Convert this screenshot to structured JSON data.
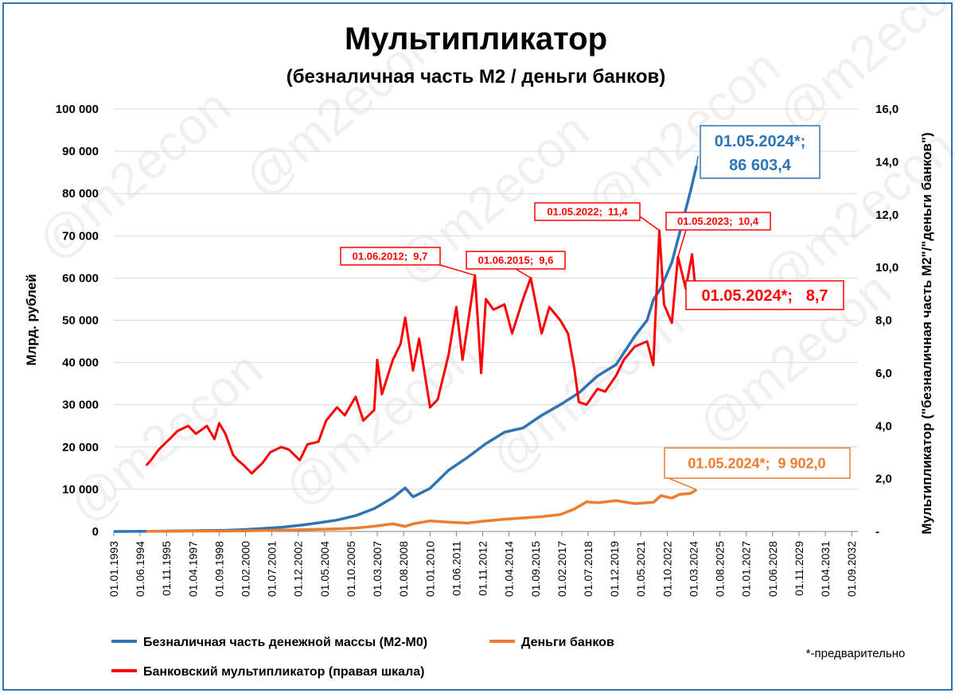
{
  "chart_data": {
    "type": "line",
    "title": "Мультипликатор",
    "subtitle": "(безналичная часть М2 / деньги банков)",
    "ylabel_left": "Млрд. рублей",
    "ylabel_right": "Мультипликатор (\"безналичная часть М2\"/\"деньги банков\")",
    "ylim_left": [
      0,
      100000
    ],
    "ylim_right": [
      0,
      16
    ],
    "xlim": [
      "1993-01-01",
      "2033-01-01"
    ],
    "grid": true,
    "legend_position": "bottom",
    "left_tick_labels": [
      "0",
      "10 000",
      "20 000",
      "30 000",
      "40 000",
      "50 000",
      "60 000",
      "70 000",
      "80 000",
      "90 000",
      "100 000"
    ],
    "right_tick_labels": [
      "-",
      "2,0",
      "4,0",
      "6,0",
      "8,0",
      "10,0",
      "12,0",
      "14,0",
      "16,0"
    ],
    "x_tick_labels": [
      "01.01.1993",
      "01.06.1994",
      "01.11.1995",
      "01.04.1997",
      "01.09.1998",
      "01.02.2000",
      "01.07.2001",
      "01.12.2002",
      "01.05.2004",
      "01.10.2005",
      "01.03.2007",
      "01.08.2008",
      "01.01.2010",
      "01.06.2011",
      "01.11.2012",
      "01.04.2014",
      "01.09.2015",
      "01.02.2017",
      "01.07.2018",
      "01.12.2019",
      "01.05.2021",
      "01.10.2022",
      "01.03.2024",
      "01.08.2025",
      "01.01.2027",
      "01.06.2028",
      "01.11.2029",
      "01.04.2031",
      "01.09.2032"
    ],
    "series": [
      {
        "name": "Безналичная часть денежной массы (М2-М0)",
        "axis": "left",
        "color": "#2e75b6",
        "points": [
          [
            "1993-01-01",
            5
          ],
          [
            "1995-01-01",
            60
          ],
          [
            "1997-01-01",
            170
          ],
          [
            "1999-01-01",
            280
          ],
          [
            "2000-01-01",
            450
          ],
          [
            "2001-01-01",
            700
          ],
          [
            "2002-01-01",
            1000
          ],
          [
            "2003-01-01",
            1450
          ],
          [
            "2004-01-01",
            2050
          ],
          [
            "2005-01-01",
            2700
          ],
          [
            "2006-01-01",
            3750
          ],
          [
            "2007-01-01",
            5400
          ],
          [
            "2008-01-01",
            8000
          ],
          [
            "2008-09-01",
            10300
          ],
          [
            "2009-02-01",
            8200
          ],
          [
            "2010-01-01",
            10200
          ],
          [
            "2011-01-01",
            14500
          ],
          [
            "2012-01-01",
            17500
          ],
          [
            "2013-01-01",
            20800
          ],
          [
            "2014-01-01",
            23500
          ],
          [
            "2015-01-01",
            24500
          ],
          [
            "2016-01-01",
            27500
          ],
          [
            "2017-01-01",
            30000
          ],
          [
            "2018-01-01",
            32800
          ],
          [
            "2019-01-01",
            36800
          ],
          [
            "2020-01-01",
            39500
          ],
          [
            "2021-01-01",
            46200
          ],
          [
            "2021-09-01",
            50000
          ],
          [
            "2022-01-01",
            54800
          ],
          [
            "2022-06-01",
            57600
          ],
          [
            "2023-01-01",
            63700
          ],
          [
            "2023-06-01",
            70600
          ],
          [
            "2024-01-01",
            80500
          ],
          [
            "2024-05-01",
            86603.4
          ]
        ]
      },
      {
        "name": "Деньги банков",
        "axis": "left",
        "color": "#ed7d31",
        "points": [
          [
            "1994-10-01",
            30
          ],
          [
            "1996-01-01",
            55
          ],
          [
            "1997-01-01",
            85
          ],
          [
            "1998-09-01",
            90
          ],
          [
            "2000-01-01",
            150
          ],
          [
            "2002-01-01",
            300
          ],
          [
            "2004-01-01",
            500
          ],
          [
            "2005-01-01",
            600
          ],
          [
            "2006-01-01",
            800
          ],
          [
            "2007-01-01",
            1250
          ],
          [
            "2008-01-01",
            1800
          ],
          [
            "2008-09-01",
            1200
          ],
          [
            "2009-02-01",
            1800
          ],
          [
            "2010-01-01",
            2500
          ],
          [
            "2011-01-01",
            2200
          ],
          [
            "2012-01-01",
            2000
          ],
          [
            "2013-01-01",
            2500
          ],
          [
            "2014-01-01",
            2900
          ],
          [
            "2015-01-01",
            3200
          ],
          [
            "2016-01-01",
            3500
          ],
          [
            "2017-01-01",
            4000
          ],
          [
            "2017-10-01",
            5300
          ],
          [
            "2018-06-01",
            7000
          ],
          [
            "2019-01-01",
            6800
          ],
          [
            "2020-01-01",
            7300
          ],
          [
            "2021-01-01",
            6600
          ],
          [
            "2022-01-01",
            6900
          ],
          [
            "2022-06-01",
            8500
          ],
          [
            "2023-01-01",
            7900
          ],
          [
            "2023-06-01",
            8800
          ],
          [
            "2024-01-01",
            9000
          ],
          [
            "2024-05-01",
            9902.0
          ]
        ]
      },
      {
        "name": "Банковский мультипликатор (правая шкала)",
        "axis": "right",
        "color": "#ff0000",
        "points": [
          [
            "1994-10-01",
            2.5
          ],
          [
            "1995-01-01",
            2.7
          ],
          [
            "1995-06-01",
            3.1
          ],
          [
            "1996-01-01",
            3.5
          ],
          [
            "1996-06-01",
            3.8
          ],
          [
            "1997-01-01",
            4.0
          ],
          [
            "1997-06-01",
            3.7
          ],
          [
            "1998-01-01",
            4.0
          ],
          [
            "1998-06-01",
            3.5
          ],
          [
            "1998-09-01",
            4.1
          ],
          [
            "1999-01-01",
            3.7
          ],
          [
            "1999-06-01",
            2.9
          ],
          [
            "1999-09-01",
            2.7
          ],
          [
            "2000-01-01",
            2.5
          ],
          [
            "2000-06-01",
            2.2
          ],
          [
            "2001-01-01",
            2.6
          ],
          [
            "2001-06-01",
            3.0
          ],
          [
            "2002-01-01",
            3.2
          ],
          [
            "2002-06-01",
            3.1
          ],
          [
            "2003-01-01",
            2.7
          ],
          [
            "2003-06-01",
            3.3
          ],
          [
            "2004-01-01",
            3.4
          ],
          [
            "2004-06-01",
            4.2
          ],
          [
            "2005-01-01",
            4.7
          ],
          [
            "2005-06-01",
            4.4
          ],
          [
            "2006-01-01",
            5.1
          ],
          [
            "2006-06-01",
            4.2
          ],
          [
            "2007-01-01",
            4.6
          ],
          [
            "2007-03-01",
            6.5
          ],
          [
            "2007-06-01",
            5.2
          ],
          [
            "2008-01-01",
            6.5
          ],
          [
            "2008-06-01",
            7.1
          ],
          [
            "2008-09-01",
            8.1
          ],
          [
            "2009-02-01",
            6.1
          ],
          [
            "2009-06-01",
            7.3
          ],
          [
            "2010-01-01",
            4.7
          ],
          [
            "2010-06-01",
            5.0
          ],
          [
            "2011-01-01",
            6.7
          ],
          [
            "2011-06-01",
            8.5
          ],
          [
            "2011-10-01",
            6.5
          ],
          [
            "2012-06-01",
            9.7
          ],
          [
            "2012-10-01",
            6.0
          ],
          [
            "2013-01-01",
            8.8
          ],
          [
            "2013-06-01",
            8.4
          ],
          [
            "2014-01-01",
            8.6
          ],
          [
            "2014-06-01",
            7.5
          ],
          [
            "2015-01-01",
            8.8
          ],
          [
            "2015-06-01",
            9.6
          ],
          [
            "2016-01-01",
            7.5
          ],
          [
            "2016-06-01",
            8.5
          ],
          [
            "2017-01-01",
            8.0
          ],
          [
            "2017-06-01",
            7.5
          ],
          [
            "2017-10-01",
            6.2
          ],
          [
            "2018-01-01",
            4.9
          ],
          [
            "2018-06-01",
            4.8
          ],
          [
            "2019-01-01",
            5.4
          ],
          [
            "2019-06-01",
            5.3
          ],
          [
            "2020-01-01",
            5.9
          ],
          [
            "2020-06-01",
            6.5
          ],
          [
            "2021-01-01",
            7.0
          ],
          [
            "2021-09-01",
            7.2
          ],
          [
            "2022-01-01",
            6.3
          ],
          [
            "2022-05-01",
            11.4
          ],
          [
            "2022-08-01",
            8.6
          ],
          [
            "2023-01-01",
            7.9
          ],
          [
            "2023-05-01",
            10.4
          ],
          [
            "2023-10-01",
            9.2
          ],
          [
            "2024-02-01",
            10.5
          ],
          [
            "2024-05-01",
            8.7
          ]
        ]
      }
    ],
    "annotations": [
      {
        "text": "01.05.2024*;",
        "text2": "86 603,4",
        "color": "#2e75b6",
        "series": 0,
        "x": "2024-05-01",
        "y": 86603.4
      },
      {
        "text": "01.05.2024*;  9 902,0",
        "color": "#ed7d31",
        "series": 1,
        "x": "2024-05-01",
        "y": 9902.0
      },
      {
        "text": "01.05.2024*;   8,7",
        "color": "#ff0000",
        "series": 2,
        "x": "2024-05-01",
        "y": 8.7
      },
      {
        "text": "01.06.2012;  9,7",
        "color": "#ff0000",
        "series": 2,
        "x": "2012-06-01",
        "y": 9.7
      },
      {
        "text": "01.06.2015;  9,6",
        "color": "#ff0000",
        "series": 2,
        "x": "2015-06-01",
        "y": 9.6
      },
      {
        "text": "01.05.2022;  11,4",
        "color": "#ff0000",
        "series": 2,
        "x": "2022-05-01",
        "y": 11.4
      },
      {
        "text": "01.05.2023;  10,4",
        "color": "#ff0000",
        "series": 2,
        "x": "2023-05-01",
        "y": 10.4
      }
    ],
    "footnote": "*-предварительно",
    "watermark": "@m2econ"
  }
}
